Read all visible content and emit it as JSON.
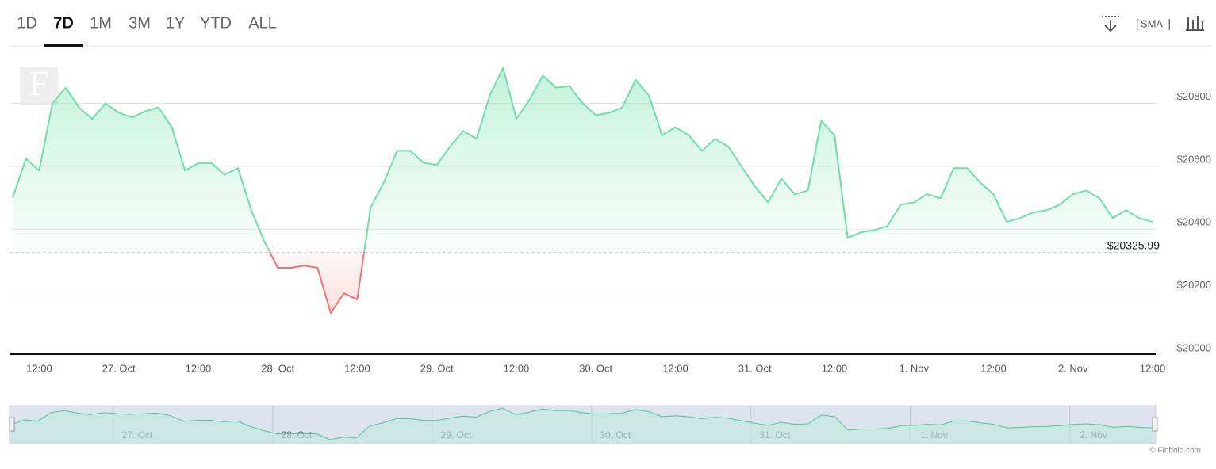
{
  "range_buttons": [
    "1D",
    "7D",
    "1M",
    "3M",
    "1Y",
    "YTD",
    "ALL"
  ],
  "selected_range": "7D",
  "toolbar": {
    "sma": "SMA"
  },
  "logo": "F",
  "credit": "© Finbold.com",
  "chart_data": {
    "type": "line",
    "color": "#6fdfa9",
    "negative_color": "#f07272",
    "reference": {
      "value": 20325.99,
      "label": "$20325.99"
    },
    "grid": true,
    "values": [
      20500,
      20624,
      20586,
      20800,
      20850,
      20787,
      20750,
      20800,
      20770,
      20755,
      20775,
      20787,
      20725,
      20586,
      20610,
      20610,
      20573,
      20594,
      20460,
      20360,
      20277,
      20277,
      20284,
      20277,
      20133,
      20196,
      20176,
      20468,
      20548,
      20649,
      20649,
      20611,
      20604,
      20662,
      20712,
      20687,
      20825,
      20913,
      20750,
      20812,
      20888,
      20850,
      20855,
      20800,
      20762,
      20770,
      20787,
      20875,
      20825,
      20699,
      20724,
      20699,
      20649,
      20687,
      20662,
      20599,
      20536,
      20485,
      20561,
      20511,
      20523,
      20745,
      20699,
      20372,
      20390,
      20397,
      20410,
      20478,
      20485,
      20511,
      20498,
      20594,
      20594,
      20548,
      20511,
      20423,
      20435,
      20453,
      20460,
      20478,
      20511,
      20523,
      20498,
      20435,
      20460,
      20435,
      20423
    ],
    "xlim": [
      0,
      86
    ],
    "xticks": [
      {
        "value": 2,
        "label": "12:00"
      },
      {
        "value": 8,
        "label": "27. Oct"
      },
      {
        "value": 14,
        "label": "12:00"
      },
      {
        "value": 20,
        "label": "28. Oct"
      },
      {
        "value": 26,
        "label": "12:00"
      },
      {
        "value": 32,
        "label": "29. Oct"
      },
      {
        "value": 38,
        "label": "12:00"
      },
      {
        "value": 44,
        "label": "30. Oct"
      },
      {
        "value": 50,
        "label": "12:00"
      },
      {
        "value": 56,
        "label": "31. Oct"
      },
      {
        "value": 62,
        "label": "12:00"
      },
      {
        "value": 68,
        "label": "1. Nov"
      },
      {
        "value": 74,
        "label": "12:00"
      },
      {
        "value": 80,
        "label": "2. Nov"
      },
      {
        "value": 86,
        "label": "12:00"
      }
    ],
    "ylim": [
      20000,
      20980
    ],
    "yticks": [
      {
        "value": 20000,
        "label": "$20000"
      },
      {
        "value": 20200,
        "label": "$20200"
      },
      {
        "value": 20400,
        "label": "$20400"
      },
      {
        "value": 20600,
        "label": "$20600"
      },
      {
        "value": 20800,
        "label": "$20800"
      }
    ]
  }
}
